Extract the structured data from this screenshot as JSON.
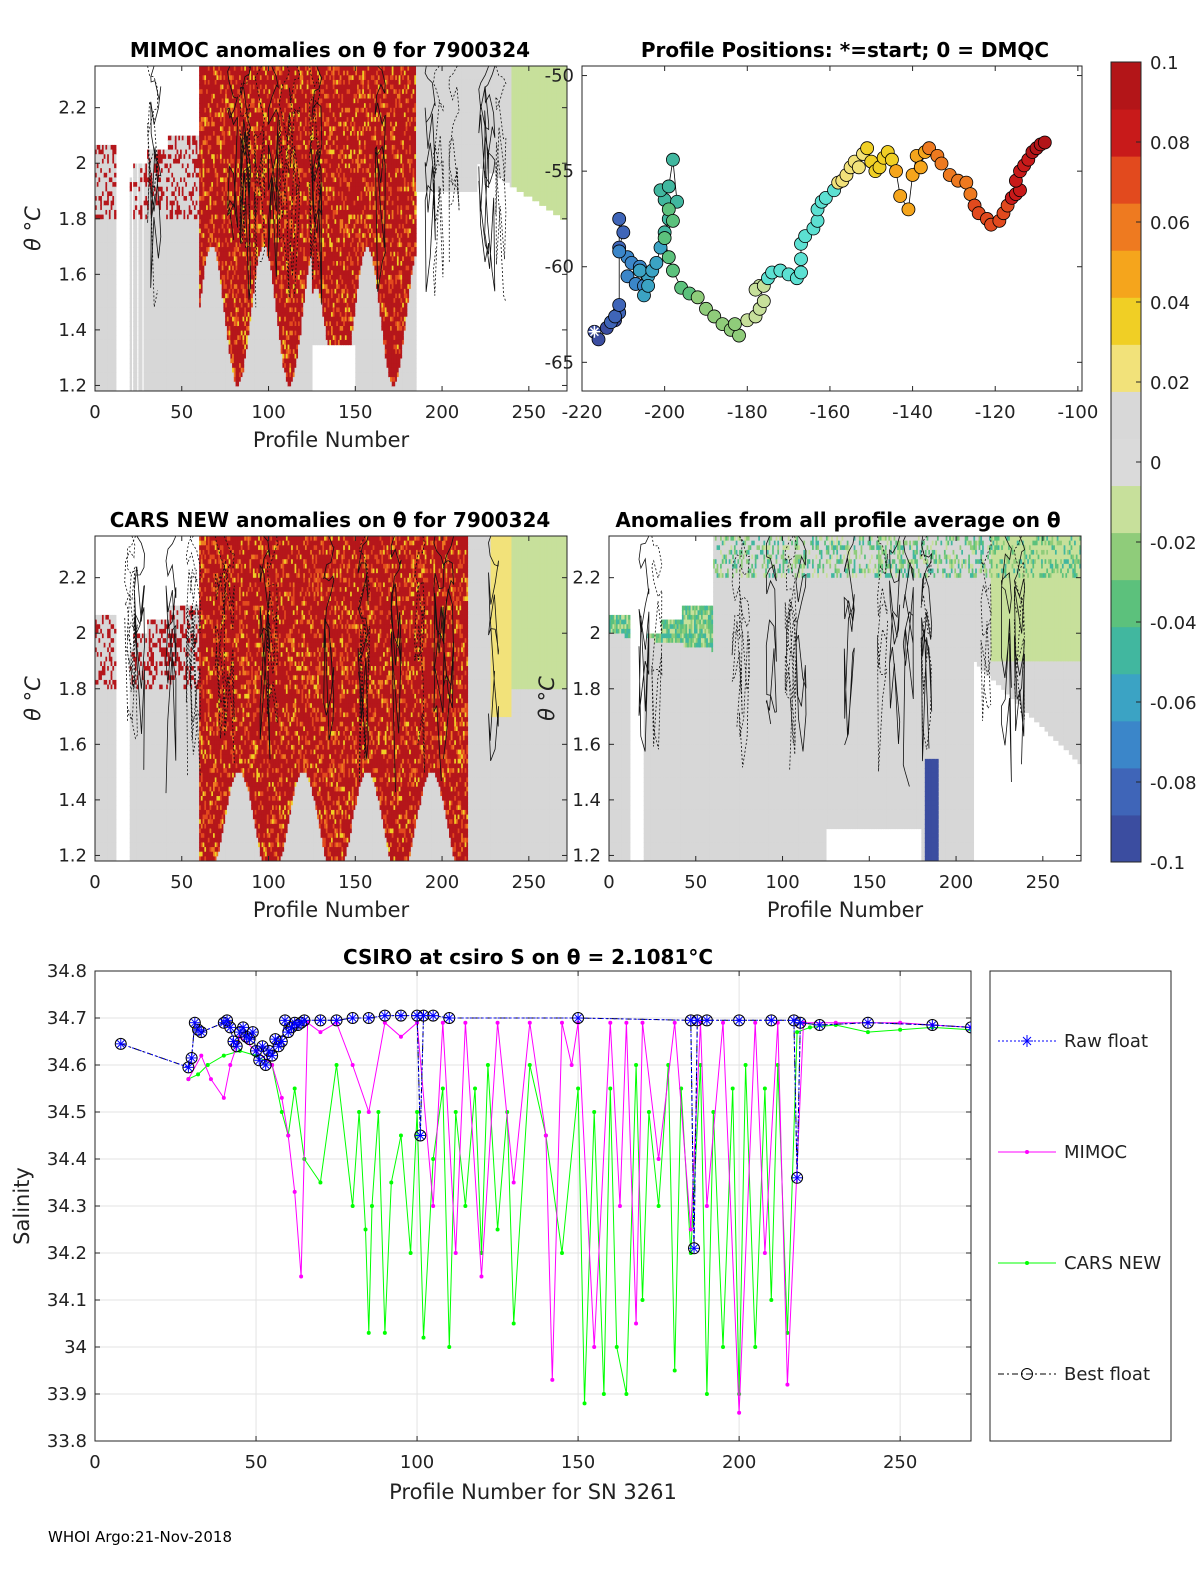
{
  "colors": {
    "colormap": [
      "#3b4da0",
      "#3f65b8",
      "#3b86c9",
      "#3ba3c4",
      "#41b79f",
      "#5cc17c",
      "#8fcc7a",
      "#c7e09b",
      "#dadada",
      "#d8d8d8",
      "#f2e27a",
      "#f0cf25",
      "#f5a51c",
      "#ee7a20",
      "#e24a1e",
      "#c81a1a",
      "#b31518"
    ],
    "field_gray": "#d7d7d7",
    "field_red": "#b5161b",
    "raw_float": "#0000ff",
    "mimoc": "#ff00ff",
    "cars": "#00ff00",
    "best": "#000000"
  },
  "chart_data": [
    {
      "id": "mimoc",
      "type": "heatmap",
      "title": "MIMOC anomalies on θ  for 7900324",
      "xlabel": "Profile Number",
      "ylabel": "θ °C",
      "xlim": [
        0,
        272
      ],
      "ylim": [
        1.18,
        2.35
      ],
      "xticks": [
        "0",
        "50",
        "100",
        "150",
        "200",
        "250"
      ],
      "yticks": [
        "1.2",
        "1.4",
        "1.6",
        "1.8",
        "2",
        "2.2"
      ]
    },
    {
      "id": "positions",
      "type": "scatter",
      "title": "Profile Positions: *=start; 0 = DMQC",
      "xlim": [
        -220,
        -99
      ],
      "ylim": [
        -66.5,
        -49.5
      ],
      "xticks": [
        "-220",
        "-200",
        "-180",
        "-160",
        "-140",
        "-120",
        "-100"
      ],
      "yticks": [
        "-65",
        "-60",
        "-55",
        "-50"
      ],
      "start": [
        -217,
        -63.4
      ],
      "track": [
        [
          -217,
          -63.4
        ],
        [
          -216,
          -63.8
        ],
        [
          -214,
          -63.2
        ],
        [
          -212,
          -62.8
        ],
        [
          -211,
          -62.4
        ],
        [
          -213,
          -62.9
        ],
        [
          -212,
          -62.6
        ],
        [
          -211,
          -62.0
        ],
        [
          -211,
          -57.5
        ],
        [
          -210,
          -58.2
        ],
        [
          -211,
          -59.0
        ],
        [
          -209,
          -59.5
        ],
        [
          -211,
          -59.2
        ],
        [
          -208,
          -59.8
        ],
        [
          -206,
          -60.0
        ],
        [
          -209,
          -60.5
        ],
        [
          -207,
          -60.9
        ],
        [
          -205,
          -61.0
        ],
        [
          -204,
          -60.5
        ],
        [
          -206,
          -60.2
        ],
        [
          -205,
          -61.5
        ],
        [
          -204,
          -61.0
        ],
        [
          -203,
          -60.2
        ],
        [
          -202,
          -59.8
        ],
        [
          -201,
          -59.0
        ],
        [
          -200,
          -58.2
        ],
        [
          -199,
          -57.5
        ],
        [
          -200,
          -56.5
        ],
        [
          -201,
          -56.0
        ],
        [
          -199,
          -55.8
        ],
        [
          -198,
          -54.4
        ],
        [
          -197,
          -56.6
        ],
        [
          -199,
          -57.0
        ],
        [
          -198,
          -57.6
        ],
        [
          -200,
          -58.5
        ],
        [
          -199,
          -59.5
        ],
        [
          -198,
          -60.2
        ],
        [
          -196,
          -61.1
        ],
        [
          -194,
          -61.4
        ],
        [
          -192,
          -61.6
        ],
        [
          -190,
          -62.2
        ],
        [
          -188,
          -62.6
        ],
        [
          -186,
          -63.0
        ],
        [
          -184,
          -63.3
        ],
        [
          -182,
          -63.6
        ],
        [
          -183,
          -63.0
        ],
        [
          -180,
          -62.8
        ],
        [
          -178,
          -62.6
        ],
        [
          -177,
          -62.2
        ],
        [
          -176,
          -61.8
        ],
        [
          -177,
          -61.0
        ],
        [
          -178,
          -61.2
        ],
        [
          -176,
          -61.0
        ],
        [
          -175,
          -60.6
        ],
        [
          -174,
          -60.3
        ],
        [
          -172,
          -60.2
        ],
        [
          -170,
          -60.4
        ],
        [
          -168,
          -60.6
        ],
        [
          -167,
          -60.3
        ],
        [
          -167,
          -59.6
        ],
        [
          -167,
          -58.8
        ],
        [
          -166,
          -58.4
        ],
        [
          -164,
          -58.0
        ],
        [
          -163,
          -57.6
        ],
        [
          -163,
          -57.0
        ],
        [
          -162,
          -56.6
        ],
        [
          -161,
          -56.4
        ],
        [
          -159,
          -56.0
        ],
        [
          -158,
          -55.6
        ],
        [
          -157,
          -55.5
        ],
        [
          -156,
          -55.2
        ],
        [
          -155,
          -54.8
        ],
        [
          -154,
          -54.5
        ],
        [
          -153,
          -54.8
        ],
        [
          -152,
          -54.1
        ],
        [
          -151,
          -53.8
        ],
        [
          -150,
          -54.5
        ],
        [
          -149,
          -55.0
        ],
        [
          -148,
          -54.8
        ],
        [
          -147,
          -54.3
        ],
        [
          -146,
          -54.0
        ],
        [
          -145,
          -54.4
        ],
        [
          -144,
          -55.0
        ],
        [
          -143,
          -56.3
        ],
        [
          -141,
          -57.0
        ],
        [
          -140,
          -55.2
        ],
        [
          -139,
          -54.2
        ],
        [
          -138,
          -54.8
        ],
        [
          -137,
          -54.0
        ],
        [
          -136,
          -53.8
        ],
        [
          -134,
          -54.2
        ],
        [
          -133,
          -54.6
        ],
        [
          -131,
          -55.2
        ],
        [
          -129,
          -55.5
        ],
        [
          -127,
          -55.6
        ],
        [
          -126,
          -56.2
        ],
        [
          -125,
          -56.8
        ],
        [
          -124,
          -57.2
        ],
        [
          -122,
          -57.5
        ],
        [
          -121,
          -57.8
        ],
        [
          -119,
          -57.6
        ],
        [
          -118,
          -57.2
        ],
        [
          -117,
          -56.8
        ],
        [
          -116,
          -56.4
        ],
        [
          -115,
          -56.2
        ],
        [
          -114,
          -56.0
        ],
        [
          -115,
          -55.5
        ],
        [
          -114,
          -55.0
        ],
        [
          -113,
          -54.7
        ],
        [
          -112,
          -54.4
        ],
        [
          -111,
          -54.0
        ],
        [
          -110,
          -53.8
        ],
        [
          -109,
          -53.6
        ],
        [
          -108,
          -53.5
        ]
      ]
    },
    {
      "id": "colorbar",
      "type": "heatmap",
      "clim": [
        -0.1,
        0.1
      ],
      "ticks": [
        "0.1",
        "0.08",
        "0.06",
        "0.04",
        "0.02",
        "0",
        "-0.02",
        "-0.04",
        "-0.06",
        "-0.08",
        "-0.1"
      ]
    },
    {
      "id": "cars",
      "type": "heatmap",
      "title": "CARS NEW anomalies on θ for 7900324",
      "xlabel": "Profile Number",
      "ylabel": "θ °C",
      "xlim": [
        0,
        272
      ],
      "ylim": [
        1.18,
        2.35
      ],
      "xticks": [
        "0",
        "50",
        "100",
        "150",
        "200",
        "250"
      ],
      "yticks": [
        "1.2",
        "1.4",
        "1.6",
        "1.8",
        "2",
        "2.2"
      ]
    },
    {
      "id": "allavg",
      "type": "heatmap",
      "title": "Anomalies from all profile average on θ",
      "xlabel": "Profile Number",
      "ylabel": "θ °C",
      "xlim": [
        0,
        272
      ],
      "ylim": [
        1.18,
        2.35
      ],
      "xticks": [
        "0",
        "50",
        "100",
        "150",
        "200",
        "250"
      ],
      "yticks": [
        "1.2",
        "1.4",
        "1.6",
        "1.8",
        "2",
        "2.2"
      ]
    },
    {
      "id": "salinity",
      "type": "line",
      "title": "CSIRO at csiro S on θ = 2.1081°C",
      "xlabel": "Profile Number for SN 3261",
      "ylabel": "Salinity",
      "xlim": [
        0,
        272
      ],
      "ylim": [
        33.8,
        34.8
      ],
      "xticks": [
        "0",
        "50",
        "100",
        "150",
        "200",
        "250"
      ],
      "yticks": [
        "33.8",
        "33.9",
        "34",
        "34.1",
        "34.2",
        "34.3",
        "34.4",
        "34.5",
        "34.6",
        "34.7",
        "34.8"
      ],
      "legend": [
        "Raw float",
        "MIMOC",
        "CARS NEW",
        "Best float"
      ],
      "series": [
        {
          "name": "Best float",
          "x": [
            8,
            29,
            30,
            31,
            32,
            33,
            40,
            41,
            42,
            43,
            44,
            45,
            46,
            47,
            48,
            49,
            50,
            51,
            52,
            53,
            54,
            55,
            56,
            57,
            58,
            59,
            60,
            61,
            62,
            63,
            64,
            65,
            70,
            75,
            80,
            85,
            90,
            95,
            100,
            101,
            102,
            105,
            110,
            150,
            185,
            186,
            187,
            190,
            200,
            210,
            217,
            218,
            219,
            225,
            240,
            260,
            272
          ],
          "y": [
            34.645,
            34.595,
            34.615,
            34.69,
            34.675,
            34.67,
            34.69,
            34.695,
            34.68,
            34.65,
            34.64,
            34.67,
            34.68,
            34.66,
            34.655,
            34.67,
            34.63,
            34.61,
            34.64,
            34.6,
            34.63,
            34.62,
            34.655,
            34.64,
            34.65,
            34.695,
            34.67,
            34.68,
            34.69,
            34.685,
            34.69,
            34.695,
            34.695,
            34.695,
            34.7,
            34.7,
            34.705,
            34.705,
            34.705,
            34.45,
            34.705,
            34.705,
            34.7,
            34.7,
            34.695,
            34.21,
            34.695,
            34.695,
            34.695,
            34.695,
            34.695,
            34.36,
            34.69,
            34.685,
            34.69,
            34.685,
            34.68
          ]
        },
        {
          "name": "MIMOC",
          "x": [
            29,
            33,
            36,
            40,
            42,
            45,
            50,
            55,
            58,
            60,
            62,
            64,
            66,
            70,
            75,
            80,
            85,
            90,
            95,
            100,
            105,
            108,
            112,
            115,
            120,
            125,
            130,
            135,
            140,
            142,
            145,
            148,
            150,
            155,
            160,
            163,
            165,
            168,
            170,
            175,
            180,
            185,
            188,
            190,
            195,
            200,
            205,
            208,
            212,
            215,
            220,
            230,
            240,
            250,
            260,
            272
          ],
          "y": [
            34.57,
            34.62,
            34.57,
            34.53,
            34.6,
            34.66,
            34.63,
            34.6,
            34.53,
            34.45,
            34.33,
            34.15,
            34.69,
            34.67,
            34.69,
            34.6,
            34.5,
            34.69,
            34.66,
            34.69,
            34.3,
            34.69,
            34.2,
            34.69,
            34.15,
            34.69,
            34.35,
            34.69,
            34.45,
            33.93,
            34.69,
            34.6,
            34.69,
            34.0,
            34.69,
            34.3,
            34.69,
            34.05,
            34.69,
            34.4,
            34.69,
            34.25,
            34.69,
            34.3,
            34.69,
            33.86,
            34.69,
            34.2,
            34.69,
            33.92,
            34.69,
            34.69,
            34.69,
            34.69,
            34.685,
            34.68
          ]
        },
        {
          "name": "CARS NEW",
          "x": [
            29,
            32,
            35,
            40,
            45,
            50,
            55,
            58,
            60,
            62,
            65,
            70,
            75,
            80,
            82,
            84,
            85,
            86,
            88,
            90,
            92,
            95,
            98,
            100,
            102,
            105,
            108,
            110,
            112,
            115,
            118,
            120,
            122,
            125,
            128,
            130,
            135,
            140,
            145,
            150,
            152,
            155,
            158,
            160,
            162,
            165,
            168,
            170,
            172,
            175,
            178,
            180,
            182,
            185,
            188,
            190,
            192,
            195,
            198,
            200,
            202,
            205,
            208,
            210,
            212,
            215,
            218,
            222,
            230,
            240,
            250,
            260,
            272
          ],
          "y": [
            34.57,
            34.58,
            34.6,
            34.62,
            34.63,
            34.62,
            34.6,
            34.5,
            34.45,
            34.55,
            34.4,
            34.35,
            34.6,
            34.3,
            34.5,
            34.25,
            34.03,
            34.3,
            34.5,
            34.03,
            34.35,
            34.45,
            34.2,
            34.5,
            34.02,
            34.4,
            34.55,
            34.0,
            34.5,
            34.3,
            34.55,
            34.2,
            34.6,
            34.25,
            34.5,
            34.05,
            34.6,
            34.45,
            34.2,
            34.55,
            33.88,
            34.5,
            33.9,
            34.55,
            34.0,
            33.9,
            34.6,
            34.1,
            34.5,
            34.3,
            34.6,
            33.95,
            34.55,
            34.2,
            34.6,
            33.9,
            34.5,
            34.0,
            34.55,
            33.9,
            34.6,
            34.0,
            34.55,
            34.1,
            34.6,
            34.03,
            34.67,
            34.68,
            34.685,
            34.67,
            34.675,
            34.68,
            34.675
          ]
        },
        {
          "name": "Raw float",
          "x": [
            8,
            29,
            30,
            31,
            32,
            33,
            40,
            41,
            42,
            43,
            44,
            45,
            46,
            47,
            48,
            49,
            50,
            51,
            52,
            53,
            54,
            55,
            56,
            57,
            58,
            59,
            60,
            61,
            62,
            63,
            64,
            65,
            70,
            75,
            80,
            85,
            90,
            95,
            100,
            101,
            102,
            105,
            110,
            150,
            185,
            186,
            187,
            190,
            200,
            210,
            217,
            218,
            219,
            225,
            240,
            260,
            272
          ],
          "y": [
            34.645,
            34.595,
            34.615,
            34.69,
            34.675,
            34.67,
            34.69,
            34.695,
            34.68,
            34.65,
            34.64,
            34.67,
            34.68,
            34.66,
            34.655,
            34.67,
            34.63,
            34.61,
            34.64,
            34.6,
            34.63,
            34.62,
            34.655,
            34.64,
            34.65,
            34.695,
            34.67,
            34.68,
            34.69,
            34.685,
            34.69,
            34.695,
            34.695,
            34.695,
            34.7,
            34.7,
            34.705,
            34.705,
            34.705,
            34.45,
            34.705,
            34.705,
            34.7,
            34.7,
            34.695,
            34.21,
            34.695,
            34.695,
            34.695,
            34.695,
            34.695,
            34.36,
            34.69,
            34.685,
            34.69,
            34.685,
            34.68
          ]
        }
      ]
    }
  ],
  "footer": "WHOI Argo:21-Nov-2018"
}
